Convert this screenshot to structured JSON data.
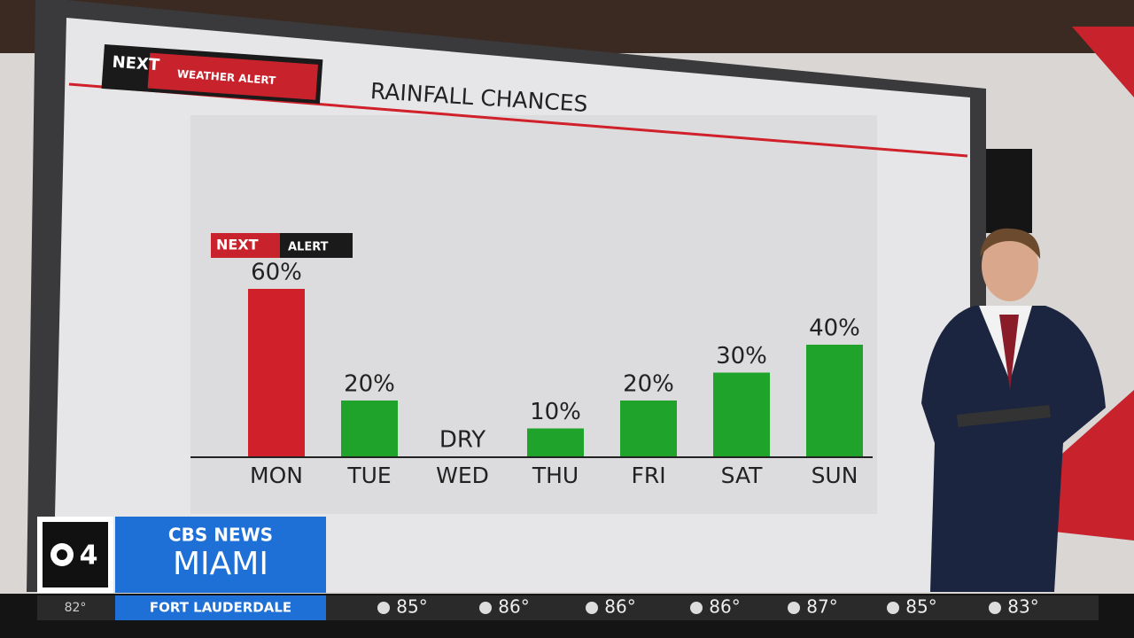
{
  "chart_data": {
    "type": "bar",
    "title": "RAINFALL CHANCES",
    "categories": [
      "MON",
      "TUE",
      "WED",
      "THU",
      "FRI",
      "SAT",
      "SUN"
    ],
    "values": [
      60,
      20,
      0,
      10,
      20,
      30,
      40
    ],
    "value_labels": [
      "60%",
      "20%",
      "DRY",
      "10%",
      "20%",
      "30%",
      "40%"
    ],
    "colors": [
      "#d0202a",
      "#1fa32a",
      "#1fa32a",
      "#1fa32a",
      "#1fa32a",
      "#1fa32a",
      "#1fa32a"
    ],
    "annotation": {
      "brand": "NEXT",
      "text": "ALERT"
    }
  },
  "header_logo": {
    "brand": "NEXT",
    "text": "WEATHER ALERT"
  },
  "station": {
    "channel": "4",
    "network": "CBS NEWS",
    "city": "MIAMI"
  },
  "ticker": {
    "first": "82°",
    "location": "FORT LAUDERDALE",
    "temps": [
      "85°",
      "86°",
      "86°",
      "86°",
      "87°",
      "85°",
      "83°"
    ]
  }
}
